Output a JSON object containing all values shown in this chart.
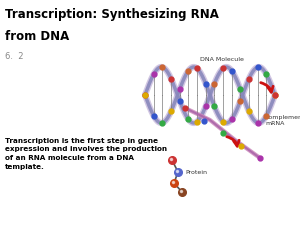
{
  "title_line1": "Transcription: Synthesizing RNA",
  "title_line2": "from DNA",
  "subtitle": "6.  2",
  "body_text": "Transcription is the first step in gene\nexpression and involves the production\nof an RNA molecule from a DNA\ntemplate.",
  "dna_label": "DNA Molecule",
  "mrna_label": "Complementary\nmRNA",
  "protein_label": "Protein",
  "background_color": "#ffffff",
  "title_color": "#000000",
  "subtitle_color": "#888888",
  "body_color": "#000000",
  "title_fontsize": 8.5,
  "subtitle_fontsize": 6,
  "body_fontsize": 5.2,
  "label_fontsize": 4.5
}
